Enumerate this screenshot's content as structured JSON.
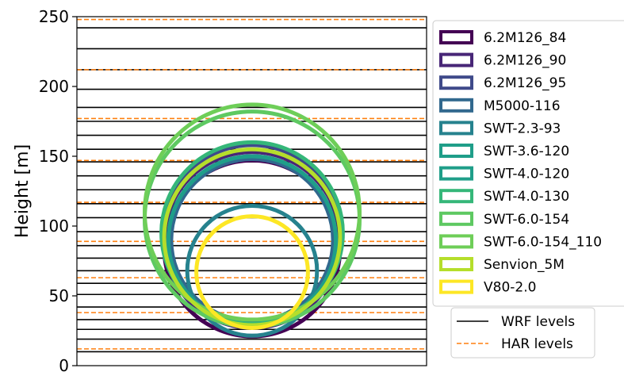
{
  "chart_data": {
    "type": "circle-overlay",
    "ylabel": "Height [m]",
    "ylim": [
      0,
      250
    ],
    "yticks": [
      0,
      50,
      100,
      150,
      200,
      250
    ],
    "grid": false,
    "legend_position": "right-outside",
    "rotors": [
      {
        "name": "6.2M126_84",
        "hub_height": 84,
        "rotor_diameter": 126,
        "color": "#440154"
      },
      {
        "name": "6.2M126_90",
        "hub_height": 90,
        "rotor_diameter": 126,
        "color": "#482677"
      },
      {
        "name": "6.2M126_95",
        "hub_height": 95,
        "rotor_diameter": 126,
        "color": "#3f4a8a"
      },
      {
        "name": "M5000-116",
        "hub_height": 90,
        "rotor_diameter": 116,
        "color": "#31688e"
      },
      {
        "name": "SWT-2.3-93",
        "hub_height": 68,
        "rotor_diameter": 93,
        "color": "#26828e"
      },
      {
        "name": "SWT-3.6-120",
        "hub_height": 90,
        "rotor_diameter": 120,
        "color": "#1f9e89"
      },
      {
        "name": "SWT-4.0-120",
        "hub_height": 90,
        "rotor_diameter": 120,
        "color": "#1f9e89"
      },
      {
        "name": "SWT-4.0-130",
        "hub_height": 95,
        "rotor_diameter": 130,
        "color": "#35b779"
      },
      {
        "name": "SWT-6.0-154",
        "hub_height": 105,
        "rotor_diameter": 154,
        "color": "#5ec962"
      },
      {
        "name": "SWT-6.0-154_110",
        "hub_height": 110,
        "rotor_diameter": 154,
        "color": "#6ece58"
      },
      {
        "name": "Senvion_5M",
        "hub_height": 92,
        "rotor_diameter": 126,
        "color": "#b5de2b"
      },
      {
        "name": "V80-2.0",
        "hub_height": 67,
        "rotor_diameter": 80,
        "color": "#fde725"
      }
    ],
    "wrf_levels": [
      10,
      19,
      26,
      33,
      42,
      51,
      59,
      68,
      77,
      86,
      96,
      106,
      116,
      126,
      136,
      146,
      155,
      165,
      175,
      185,
      198,
      212,
      227,
      242
    ],
    "har_levels": [
      12,
      38,
      63,
      89,
      117,
      147,
      177,
      212,
      248
    ],
    "reference_lines": [
      {
        "name": "WRF levels",
        "color": "#000000",
        "style": "solid"
      },
      {
        "name": "HAR levels",
        "color": "#ff7f0e",
        "style": "dashed"
      }
    ]
  }
}
